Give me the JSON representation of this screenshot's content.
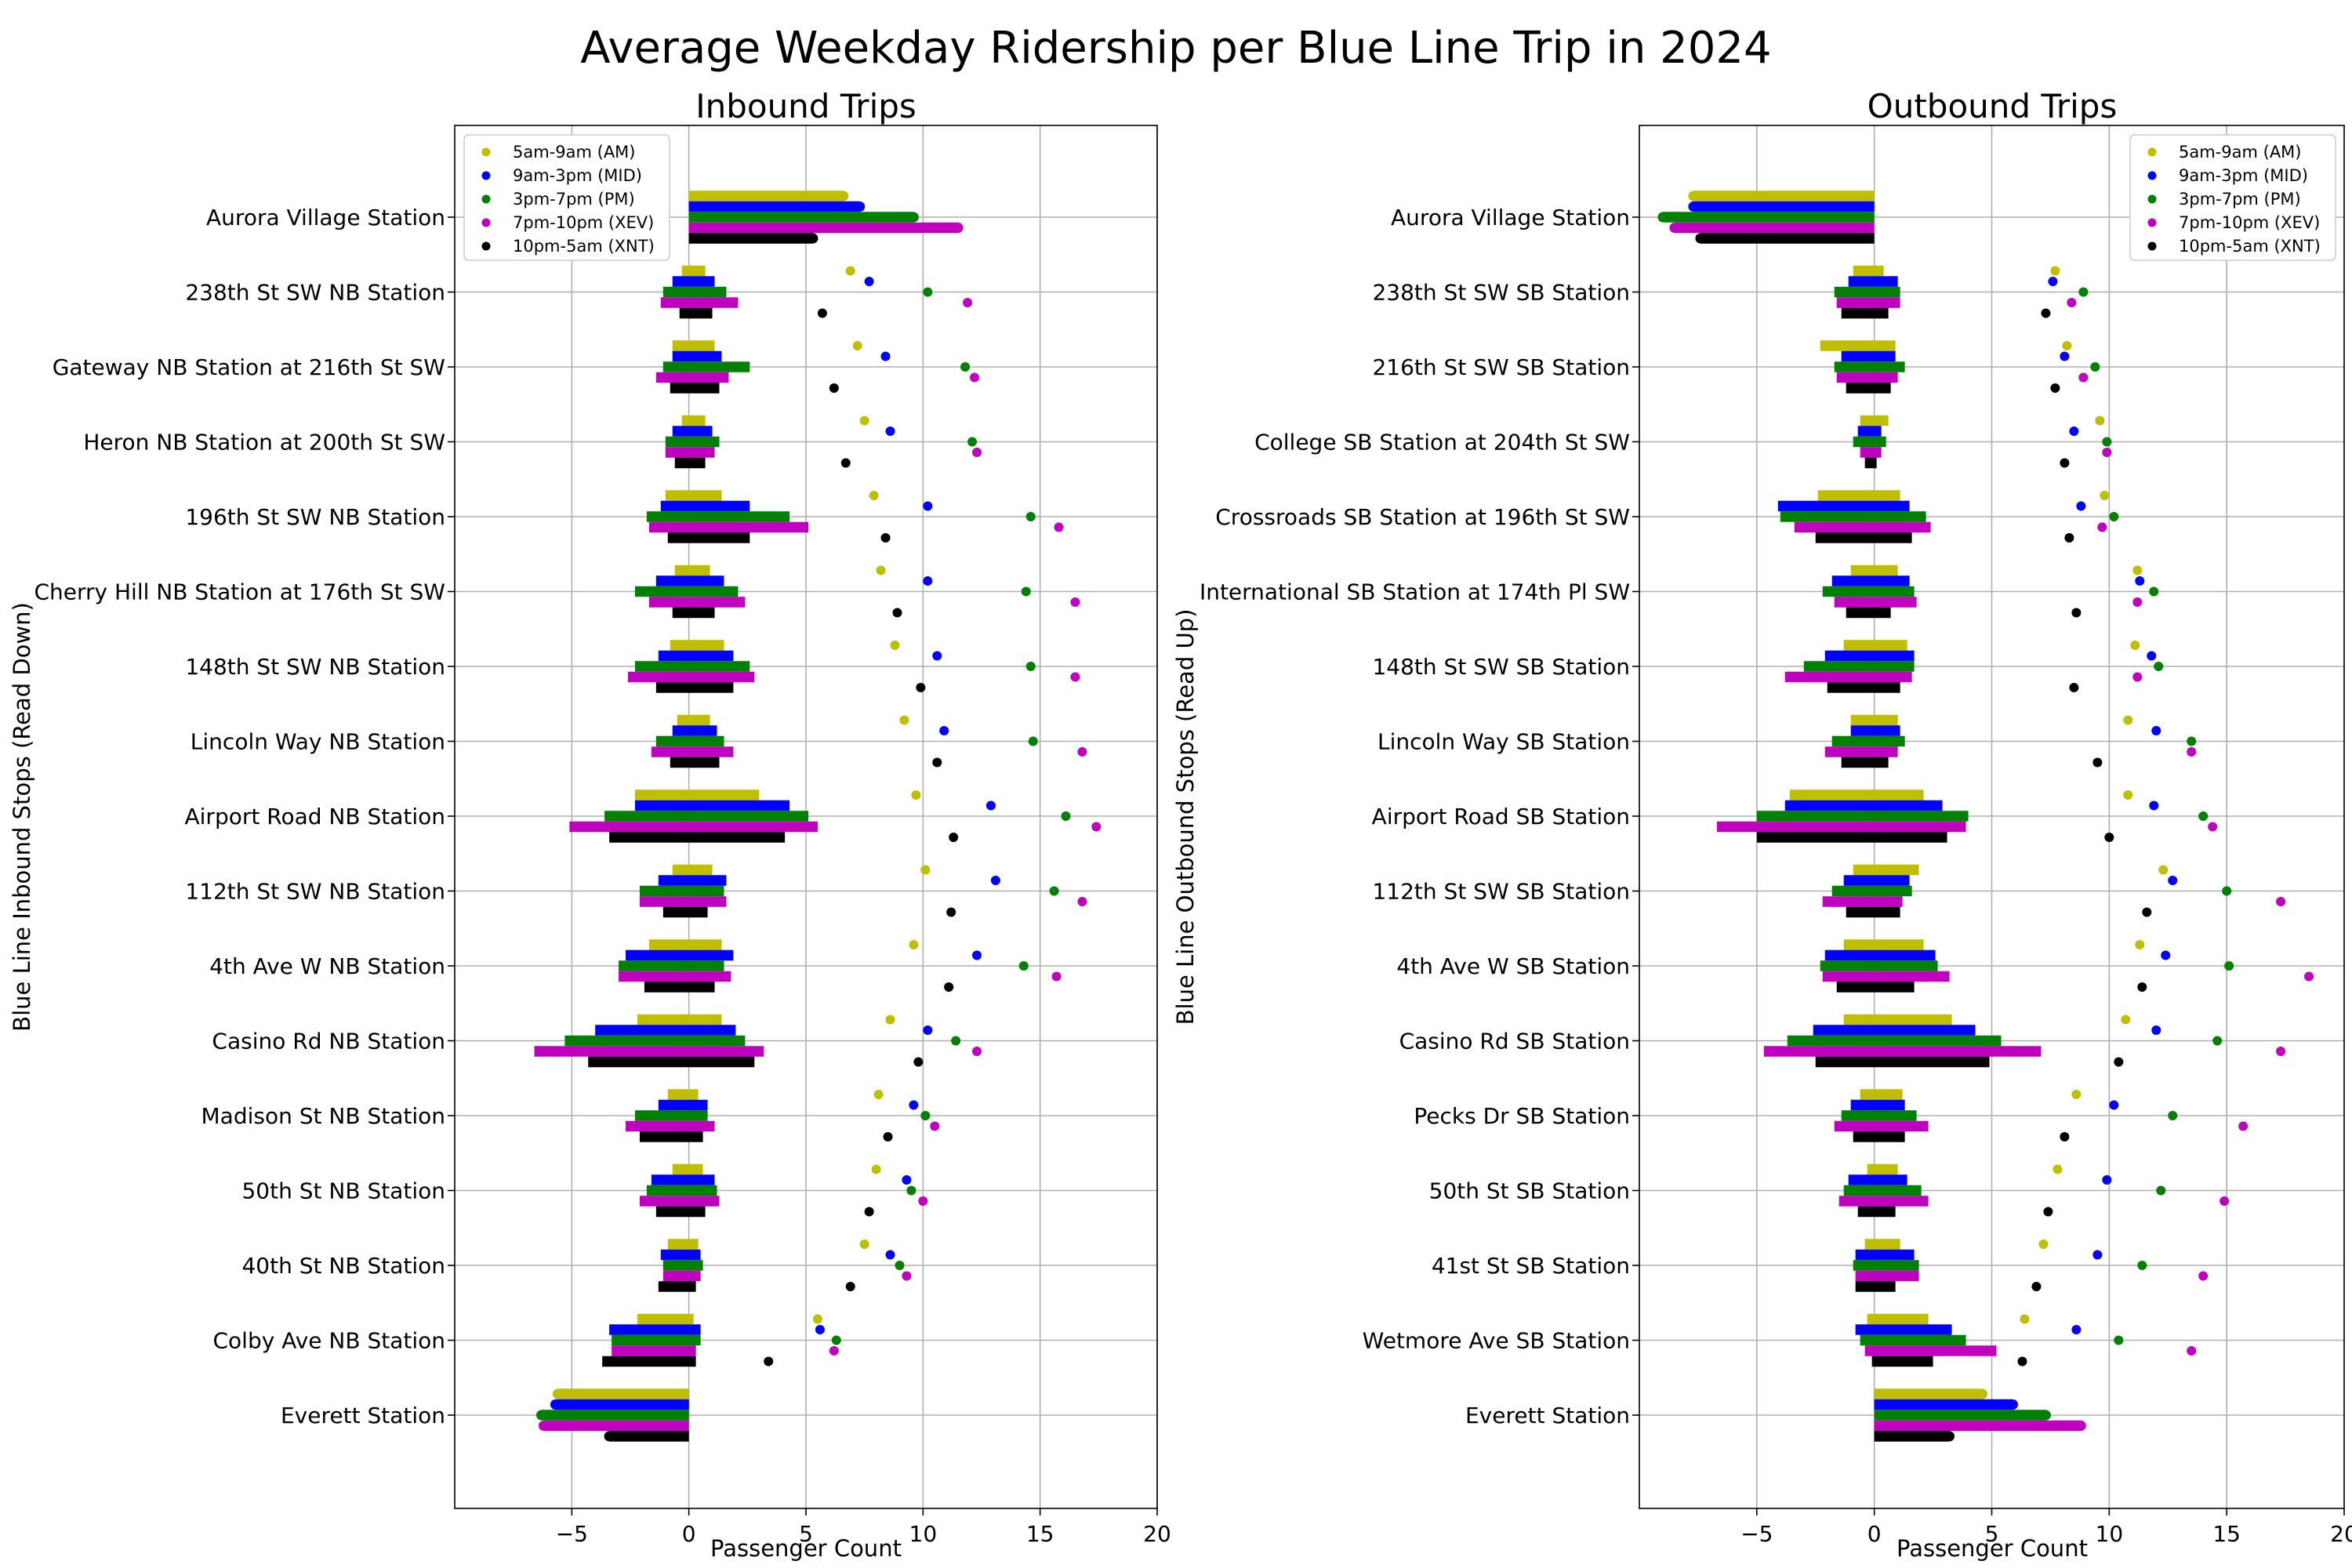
{
  "title": "Average Weekday Ridership per Blue Line Trip in 2024",
  "colors": {
    "AM": "#bfbf00",
    "MID": "#0000ff",
    "PM": "#008000",
    "XEV": "#bf00bf",
    "XNT": "#000000"
  },
  "chart_data": [
    {
      "type": "bar",
      "title": "Inbound Trips",
      "xlabel": "Passenger Count",
      "ylabel": "Blue Line Inbound Stops (Read Down)",
      "xlim": [
        -10,
        20
      ],
      "xticks": [
        -5,
        0,
        5,
        10,
        15,
        20
      ],
      "grid": true,
      "legend_placement": "upper-left",
      "legend": [
        "5am-9am (AM)",
        "9am-3pm (MID)",
        "3pm-7pm (PM)",
        "7pm-10pm (XEV)",
        "10pm-5am (XNT)"
      ],
      "categories": [
        "Aurora Village Station",
        "238th St SW NB Station",
        "Gateway NB Station at 216th St SW",
        "Heron NB Station at 200th St SW",
        "196th St SW NB Station",
        "Cherry Hill NB Station at 176th St SW",
        "148th St SW NB Station",
        "Lincoln Way NB Station",
        "Airport Road NB Station",
        "112th St SW NB Station",
        "4th Ave W NB Station",
        "Casino Rd NB Station",
        "Madison St NB Station",
        "50th St NB Station",
        "40th St NB Station",
        "Colby Ave NB Station",
        "Everett Station"
      ],
      "series": [
        {
          "name": "5am-9am (AM)",
          "bars": [
            [
              0,
              6.6
            ],
            [
              -0.3,
              0.7
            ],
            [
              -0.7,
              1.1
            ],
            [
              -0.3,
              0.7
            ],
            [
              -1,
              1.4
            ],
            [
              -0.6,
              0.9
            ],
            [
              -0.8,
              1.5
            ],
            [
              -0.5,
              0.9
            ],
            [
              -2.3,
              3
            ],
            [
              -0.7,
              1
            ],
            [
              -1.7,
              1.4
            ],
            [
              -2.2,
              1.4
            ],
            [
              -0.9,
              0.4
            ],
            [
              -0.7,
              0.6
            ],
            [
              -0.9,
              0.4
            ],
            [
              -2.2,
              0.2
            ],
            [
              -5.6,
              0
            ]
          ],
          "dots": [
            null,
            6.9,
            7.2,
            7.5,
            7.9,
            8.2,
            8.8,
            9.2,
            9.7,
            10.1,
            9.6,
            8.6,
            8.1,
            8,
            7.5,
            5.5,
            null
          ]
        },
        {
          "name": "9am-3pm (MID)",
          "bars": [
            [
              0,
              7.3
            ],
            [
              -0.7,
              1.1
            ],
            [
              -0.7,
              1.4
            ],
            [
              -0.7,
              1
            ],
            [
              -1.2,
              2.6
            ],
            [
              -1.4,
              1.5
            ],
            [
              -1.3,
              1.9
            ],
            [
              -0.7,
              1.2
            ],
            [
              -2.3,
              4.3
            ],
            [
              -1.3,
              1.6
            ],
            [
              -2.7,
              1.9
            ],
            [
              -4,
              2
            ],
            [
              -1.3,
              0.8
            ],
            [
              -1.6,
              1.1
            ],
            [
              -1.2,
              0.5
            ],
            [
              -3.4,
              0.5
            ],
            [
              -5.7,
              0
            ]
          ],
          "dots": [
            null,
            7.7,
            8.4,
            8.6,
            10.2,
            10.2,
            10.6,
            10.9,
            12.9,
            13.1,
            12.3,
            10.2,
            9.6,
            9.3,
            8.6,
            5.6,
            null
          ]
        },
        {
          "name": "3pm-7pm (PM)",
          "bars": [
            [
              0,
              9.6
            ],
            [
              -1.1,
              1.6
            ],
            [
              -1.1,
              2.6
            ],
            [
              -1,
              1.3
            ],
            [
              -1.8,
              4.3
            ],
            [
              -2.3,
              2.1
            ],
            [
              -2.3,
              2.6
            ],
            [
              -1.4,
              1.5
            ],
            [
              -3.6,
              5.1
            ],
            [
              -2.1,
              1.5
            ],
            [
              -3,
              1.5
            ],
            [
              -5.3,
              2.4
            ],
            [
              -2.3,
              0.8
            ],
            [
              -1.8,
              1.2
            ],
            [
              -1.1,
              0.6
            ],
            [
              -3.3,
              0.5
            ],
            [
              -6.3,
              0
            ]
          ],
          "dots": [
            null,
            10.2,
            11.8,
            12.1,
            14.6,
            14.4,
            14.6,
            14.7,
            16.1,
            15.6,
            14.3,
            11.4,
            10.1,
            9.5,
            9,
            6.3,
            null
          ]
        },
        {
          "name": "7pm-10pm (XEV)",
          "bars": [
            [
              0,
              11.5
            ],
            [
              -1.2,
              2.1
            ],
            [
              -1.4,
              1.7
            ],
            [
              -1,
              1.1
            ],
            [
              -1.7,
              5.1
            ],
            [
              -1.7,
              2.4
            ],
            [
              -2.6,
              2.8
            ],
            [
              -1.6,
              1.9
            ],
            [
              -5.1,
              5.5
            ],
            [
              -2.1,
              1.6
            ],
            [
              -3,
              1.8
            ],
            [
              -6.6,
              3.2
            ],
            [
              -2.7,
              1.1
            ],
            [
              -2.1,
              1.3
            ],
            [
              -1.1,
              0.5
            ],
            [
              -3.3,
              0.3
            ],
            [
              -6.2,
              0
            ]
          ],
          "dots": [
            null,
            11.9,
            12.2,
            12.3,
            15.8,
            16.5,
            16.5,
            16.8,
            17.4,
            16.8,
            15.7,
            12.3,
            10.5,
            10,
            9.3,
            6.2,
            null
          ]
        },
        {
          "name": "10pm-5am (XNT)",
          "bars": [
            [
              0,
              5.3
            ],
            [
              -0.4,
              1
            ],
            [
              -0.8,
              1.3
            ],
            [
              -0.6,
              0.7
            ],
            [
              -0.9,
              2.6
            ],
            [
              -0.7,
              1.1
            ],
            [
              -1.4,
              1.9
            ],
            [
              -0.8,
              1.3
            ],
            [
              -3.4,
              4.1
            ],
            [
              -1.1,
              0.8
            ],
            [
              -1.9,
              1.1
            ],
            [
              -4.3,
              2.8
            ],
            [
              -2.1,
              0.6
            ],
            [
              -1.4,
              0.7
            ],
            [
              -1.3,
              0.3
            ],
            [
              -3.7,
              0.3
            ],
            [
              -3.4,
              0
            ]
          ],
          "dots": [
            null,
            5.7,
            6.2,
            6.7,
            8.4,
            8.9,
            9.9,
            10.6,
            11.3,
            11.2,
            11.1,
            9.8,
            8.5,
            7.7,
            6.9,
            3.4,
            null
          ]
        }
      ]
    },
    {
      "type": "bar",
      "title": "Outbound Trips",
      "xlabel": "Passenger Count",
      "ylabel": "Blue Line Outbound Stops (Read Up)",
      "xlim": [
        -10,
        20
      ],
      "xticks": [
        -5,
        0,
        5,
        10,
        15,
        20
      ],
      "grid": true,
      "legend_placement": "upper-right",
      "legend": [
        "5am-9am (AM)",
        "9am-3pm (MID)",
        "3pm-7pm (PM)",
        "7pm-10pm (XEV)",
        "10pm-5am (XNT)"
      ],
      "categories": [
        "Aurora Village Station",
        "238th St SW SB Station",
        "216th St SW SB Station",
        "College SB Station at 204th St SW",
        "Crossroads SB Station at 196th St SW",
        "International SB Station at 174th Pl SW",
        "148th St SW SB Station",
        "Lincoln Way SB Station",
        "Airport Road SB Station",
        "112th St SW SB Station",
        "4th Ave W SB Station",
        "Casino Rd SB Station",
        "Pecks Dr SB Station",
        "50th St SB Station",
        "41st St SB Station",
        "Wetmore Ave SB Station",
        "Everett Station"
      ],
      "series": [
        {
          "name": "5am-9am (AM)",
          "bars": [
            [
              -7.7,
              0
            ],
            [
              -0.9,
              0.4
            ],
            [
              -2.3,
              0.9
            ],
            [
              -0.6,
              0.6
            ],
            [
              -2.4,
              1.1
            ],
            [
              -1,
              1
            ],
            [
              -1.3,
              1.4
            ],
            [
              -1,
              1
            ],
            [
              -3.6,
              2.1
            ],
            [
              -0.9,
              1.9
            ],
            [
              -1.3,
              2.1
            ],
            [
              -1.3,
              3.3
            ],
            [
              -0.6,
              1.2
            ],
            [
              -0.3,
              1
            ],
            [
              -0.4,
              1.1
            ],
            [
              -0.3,
              2.3
            ],
            [
              0,
              4.6
            ]
          ],
          "dots": [
            null,
            7.7,
            8.2,
            9.6,
            9.8,
            11.2,
            11.1,
            10.8,
            10.8,
            12.3,
            11.3,
            10.7,
            8.6,
            7.8,
            7.2,
            6.4,
            null
          ]
        },
        {
          "name": "9am-3pm (MID)",
          "bars": [
            [
              -7.7,
              0
            ],
            [
              -1.1,
              1
            ],
            [
              -1.4,
              0.9
            ],
            [
              -0.7,
              0.3
            ],
            [
              -4.1,
              1.5
            ],
            [
              -1.8,
              1.5
            ],
            [
              -2.1,
              1.7
            ],
            [
              -1,
              1.1
            ],
            [
              -3.8,
              2.9
            ],
            [
              -1.3,
              1.5
            ],
            [
              -2.1,
              2.6
            ],
            [
              -2.6,
              4.3
            ],
            [
              -1,
              1.3
            ],
            [
              -1.1,
              1.4
            ],
            [
              -0.8,
              1.7
            ],
            [
              -0.8,
              3.3
            ],
            [
              0,
              5.9
            ]
          ],
          "dots": [
            null,
            7.6,
            8.1,
            8.5,
            8.8,
            11.3,
            11.8,
            12,
            11.9,
            12.7,
            12.4,
            12,
            10.2,
            9.9,
            9.5,
            8.6,
            null
          ]
        },
        {
          "name": "3pm-7pm (PM)",
          "bars": [
            [
              -9,
              0
            ],
            [
              -1.7,
              1.1
            ],
            [
              -1.7,
              1.3
            ],
            [
              -0.9,
              0.5
            ],
            [
              -4,
              2.2
            ],
            [
              -2.2,
              1.7
            ],
            [
              -3,
              1.7
            ],
            [
              -1.8,
              1.3
            ],
            [
              -5,
              4
            ],
            [
              -1.8,
              1.6
            ],
            [
              -2.3,
              2.7
            ],
            [
              -3.7,
              5.4
            ],
            [
              -1.4,
              1.8
            ],
            [
              -1.3,
              2
            ],
            [
              -0.9,
              1.9
            ],
            [
              -0.6,
              3.9
            ],
            [
              0,
              7.3
            ]
          ],
          "dots": [
            null,
            8.9,
            9.4,
            9.9,
            10.2,
            11.9,
            12.1,
            13.5,
            14,
            15,
            15.1,
            14.6,
            12.7,
            12.2,
            11.4,
            10.4,
            null
          ]
        },
        {
          "name": "7pm-10pm (XEV)",
          "bars": [
            [
              -8.5,
              0
            ],
            [
              -1.6,
              1.1
            ],
            [
              -1.6,
              1
            ],
            [
              -0.6,
              0.3
            ],
            [
              -3.4,
              2.4
            ],
            [
              -1.7,
              1.8
            ],
            [
              -3.8,
              1.6
            ],
            [
              -2.1,
              1
            ],
            [
              -6.7,
              3.9
            ],
            [
              -2.2,
              1.2
            ],
            [
              -2.2,
              3.2
            ],
            [
              -4.7,
              7.1
            ],
            [
              -1.7,
              2.3
            ],
            [
              -1.5,
              2.3
            ],
            [
              -0.8,
              1.9
            ],
            [
              -0.4,
              5.2
            ],
            [
              0,
              8.8
            ]
          ],
          "dots": [
            null,
            8.4,
            8.9,
            9.9,
            9.7,
            11.2,
            11.2,
            13.5,
            14.4,
            17.3,
            18.5,
            17.3,
            15.7,
            14.9,
            14,
            13.5,
            null
          ]
        },
        {
          "name": "10pm-5am (XNT)",
          "bars": [
            [
              -7.4,
              0
            ],
            [
              -1.4,
              0.6
            ],
            [
              -1.2,
              0.7
            ],
            [
              -0.4,
              0.1
            ],
            [
              -2.5,
              1.6
            ],
            [
              -1.2,
              0.7
            ],
            [
              -2,
              1.1
            ],
            [
              -1.4,
              0.6
            ],
            [
              -5,
              3.1
            ],
            [
              -1.2,
              1.1
            ],
            [
              -1.6,
              1.7
            ],
            [
              -2.5,
              4.9
            ],
            [
              -0.9,
              1.3
            ],
            [
              -0.7,
              0.9
            ],
            [
              -0.8,
              0.9
            ],
            [
              -0.1,
              2.5
            ],
            [
              0,
              3.2
            ]
          ],
          "dots": [
            null,
            7.3,
            7.7,
            8.1,
            8.3,
            8.6,
            8.5,
            9.5,
            10,
            11.6,
            11.4,
            10.4,
            8.1,
            7.4,
            6.9,
            6.3,
            null
          ]
        }
      ]
    }
  ]
}
